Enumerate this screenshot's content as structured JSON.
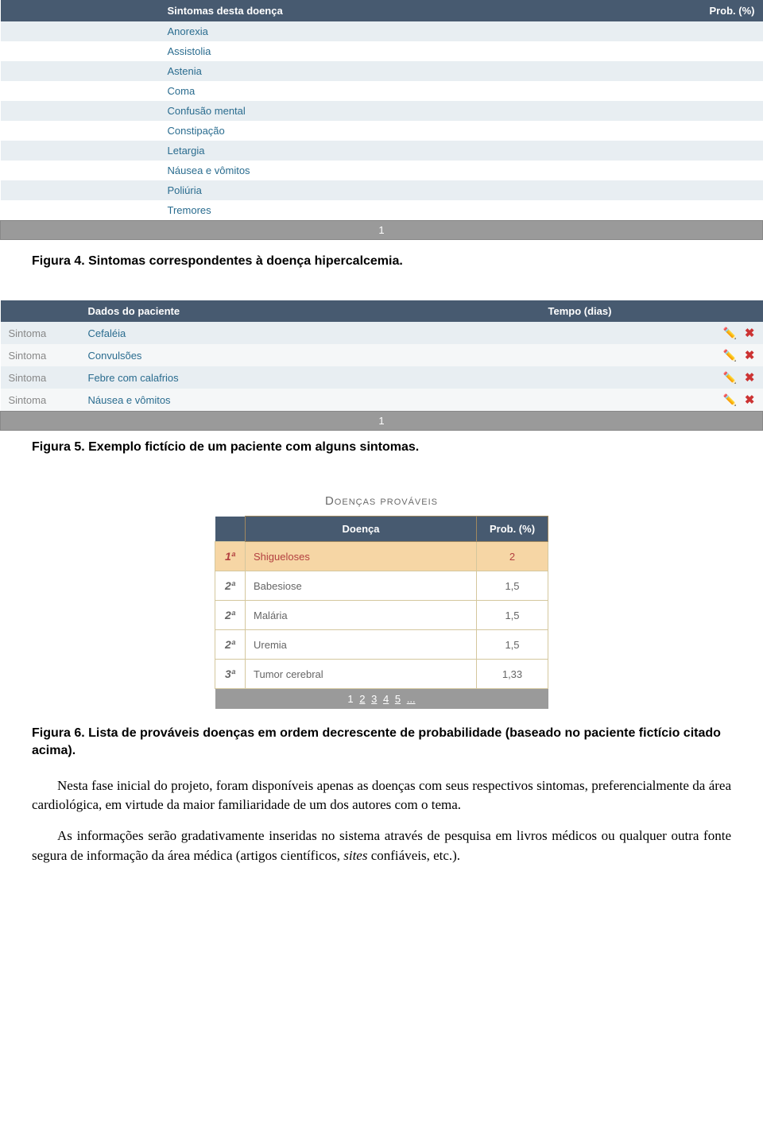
{
  "table1": {
    "header": {
      "col1": "Sintomas desta doença",
      "col2": "Prob. (%)"
    },
    "rows": [
      "Anorexia",
      "Assistolia",
      "Astenia",
      "Coma",
      "Confusão mental",
      "Constipação",
      "Letargia",
      "Náusea e vômitos",
      "Poliúria",
      "Tremores"
    ],
    "footer": "1"
  },
  "caption1": "Figura 4. Sintomas correspondentes à doença hipercalcemia.",
  "table2": {
    "header": {
      "col1": "",
      "col2": "Dados do paciente",
      "col3": "Tempo (dias)"
    },
    "type_label": "Sintoma",
    "rows": [
      "Cefaléia",
      "Convulsões",
      "Febre com calafrios",
      "Náusea e vômitos"
    ],
    "footer": "1"
  },
  "caption2": "Figura 5. Exemplo fictício de um paciente com alguns sintomas.",
  "section_title": "Doenças prováveis",
  "table3": {
    "header": {
      "rank": "",
      "disease": "Doença",
      "prob": "Prob. (%)"
    },
    "rows": [
      {
        "rank": "1ª",
        "disease": "Shigueloses",
        "prob": "2",
        "highlight": true
      },
      {
        "rank": "2ª",
        "disease": "Babesiose",
        "prob": "1,5",
        "highlight": false
      },
      {
        "rank": "2ª",
        "disease": "Malária",
        "prob": "1,5",
        "highlight": false
      },
      {
        "rank": "2ª",
        "disease": "Uremia",
        "prob": "1,5",
        "highlight": false
      },
      {
        "rank": "3ª",
        "disease": "Tumor cerebral",
        "prob": "1,33",
        "highlight": false
      }
    ],
    "pages": [
      "1",
      "2",
      "3",
      "4",
      "5",
      "..."
    ]
  },
  "caption3": "Figura 6. Lista de prováveis doenças em ordem decrescente de probabilidade (baseado no paciente fictício citado acima).",
  "para1": "Nesta fase inicial do projeto, foram disponíveis apenas as doenças com seus respectivos sintomas, preferencialmente da área cardiológica, em virtude da maior familiaridade de um dos autores com o tema.",
  "para2_a": "As informações serão gradativamente inseridas no sistema através de pesquisa em livros médicos ou qualquer outra fonte segura de informação da área médica (artigos científicos, ",
  "para2_em": "sites",
  "para2_b": " confiáveis, etc.).",
  "colors": {
    "header_bg": "#475a70",
    "row_even_bg": "#e8eef2",
    "link_color": "#2a6c8f",
    "footer_bg": "#9a9a9a",
    "highlight_bg": "#f6d6a5",
    "highlight_fg": "#b34040",
    "cell_border": "#d4c79e"
  }
}
